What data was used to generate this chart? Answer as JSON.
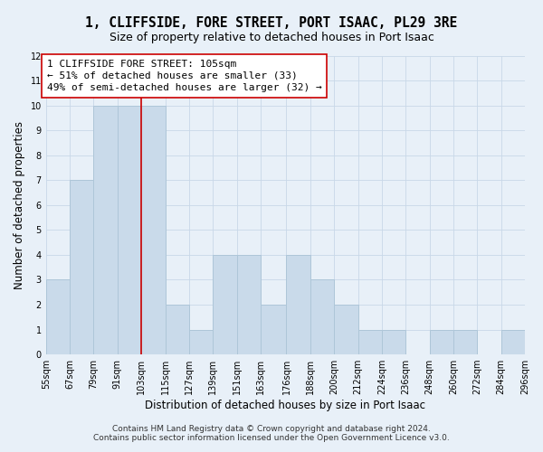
{
  "title": "1, CLIFFSIDE, FORE STREET, PORT ISAAC, PL29 3RE",
  "subtitle": "Size of property relative to detached houses in Port Isaac",
  "xlabel": "Distribution of detached houses by size in Port Isaac",
  "ylabel": "Number of detached properties",
  "footer_line1": "Contains HM Land Registry data © Crown copyright and database right 2024.",
  "footer_line2": "Contains public sector information licensed under the Open Government Licence v3.0.",
  "bar_edges": [
    55,
    67,
    79,
    91,
    103,
    115,
    127,
    139,
    151,
    163,
    176,
    188,
    200,
    212,
    224,
    236,
    248,
    260,
    272,
    284,
    296
  ],
  "bar_heights": [
    3,
    7,
    10,
    10,
    10,
    2,
    1,
    4,
    4,
    2,
    4,
    3,
    2,
    1,
    1,
    0,
    1,
    1,
    0,
    1
  ],
  "bar_color": "#c9daea",
  "bar_edge_color": "#aec6d8",
  "bar_linewidth": 0.7,
  "redline_x": 103,
  "ylim": [
    0,
    12
  ],
  "yticks": [
    0,
    1,
    2,
    3,
    4,
    5,
    6,
    7,
    8,
    9,
    10,
    11,
    12
  ],
  "xtick_labels": [
    "55sqm",
    "67sqm",
    "79sqm",
    "91sqm",
    "103sqm",
    "115sqm",
    "127sqm",
    "139sqm",
    "151sqm",
    "163sqm",
    "176sqm",
    "188sqm",
    "200sqm",
    "212sqm",
    "224sqm",
    "236sqm",
    "248sqm",
    "260sqm",
    "272sqm",
    "284sqm",
    "296sqm"
  ],
  "annotation_title": "1 CLIFFSIDE FORE STREET: 105sqm",
  "annotation_line2": "← 51% of detached houses are smaller (33)",
  "annotation_line3": "49% of semi-detached houses are larger (32) →",
  "grid_color": "#c8d8e8",
  "grid_linewidth": 0.6,
  "background_color": "#e8f0f8",
  "title_fontsize": 10.5,
  "subtitle_fontsize": 9,
  "tick_fontsize": 7,
  "ylabel_fontsize": 8.5,
  "xlabel_fontsize": 8.5,
  "annotation_fontsize": 8,
  "footer_fontsize": 6.5
}
